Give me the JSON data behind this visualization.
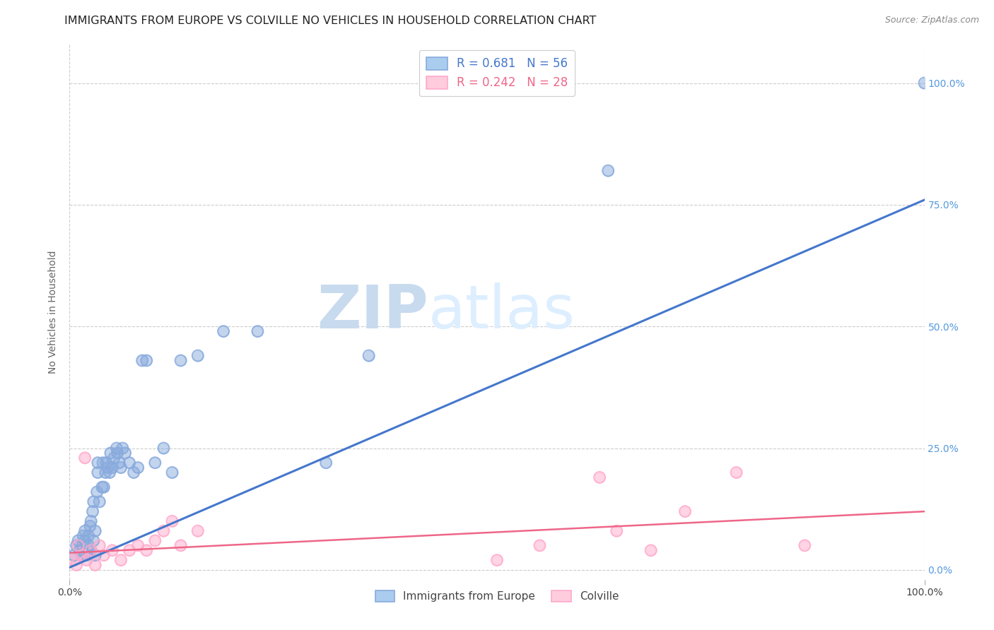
{
  "title": "IMMIGRANTS FROM EUROPE VS COLVILLE NO VEHICLES IN HOUSEHOLD CORRELATION CHART",
  "source": "Source: ZipAtlas.com",
  "ylabel": "No Vehicles in Household",
  "xlim": [
    0.0,
    1.0
  ],
  "ylim": [
    -0.02,
    1.08
  ],
  "xtick_labels": [
    "0.0%",
    "100.0%"
  ],
  "ytick_labels": [
    "0.0%",
    "25.0%",
    "50.0%",
    "75.0%",
    "100.0%"
  ],
  "ytick_positions": [
    0.0,
    0.25,
    0.5,
    0.75,
    1.0
  ],
  "xtick_positions": [
    0.0,
    1.0
  ],
  "grid_color": "#cccccc",
  "background_color": "#ffffff",
  "blue_scatter_color": "#88aadd",
  "pink_scatter_color": "#ffaacc",
  "blue_line_color": "#4477cc",
  "pink_line_color": "#ee6688",
  "right_tick_color": "#5599dd",
  "blue_R": 0.681,
  "blue_N": 56,
  "pink_R": 0.242,
  "pink_N": 28,
  "watermark_zip": "ZIP",
  "watermark_atlas": "atlas",
  "watermark_color": "#ddeeff",
  "blue_intercept": 0.005,
  "blue_slope": 0.755,
  "pink_intercept": 0.035,
  "pink_slope": 0.085,
  "blue_scatter_x": [
    0.005,
    0.008,
    0.01,
    0.012,
    0.015,
    0.015,
    0.016,
    0.018,
    0.018,
    0.02,
    0.022,
    0.022,
    0.024,
    0.025,
    0.025,
    0.027,
    0.028,
    0.028,
    0.03,
    0.03,
    0.032,
    0.033,
    0.033,
    0.035,
    0.038,
    0.039,
    0.04,
    0.042,
    0.043,
    0.045,
    0.047,
    0.048,
    0.05,
    0.052,
    0.055,
    0.056,
    0.058,
    0.06,
    0.062,
    0.065,
    0.07,
    0.075,
    0.08,
    0.085,
    0.09,
    0.1,
    0.11,
    0.12,
    0.13,
    0.15,
    0.18,
    0.22,
    0.3,
    0.35,
    0.63,
    1.0
  ],
  "blue_scatter_y": [
    0.03,
    0.05,
    0.06,
    0.04,
    0.03,
    0.05,
    0.07,
    0.06,
    0.08,
    0.03,
    0.05,
    0.07,
    0.09,
    0.04,
    0.1,
    0.12,
    0.06,
    0.14,
    0.03,
    0.08,
    0.16,
    0.2,
    0.22,
    0.14,
    0.17,
    0.22,
    0.17,
    0.2,
    0.22,
    0.21,
    0.2,
    0.24,
    0.21,
    0.23,
    0.25,
    0.24,
    0.22,
    0.21,
    0.25,
    0.24,
    0.22,
    0.2,
    0.21,
    0.43,
    0.43,
    0.22,
    0.25,
    0.2,
    0.43,
    0.44,
    0.49,
    0.49,
    0.22,
    0.44,
    0.82,
    1.0
  ],
  "pink_scatter_x": [
    0.005,
    0.008,
    0.01,
    0.015,
    0.018,
    0.02,
    0.025,
    0.03,
    0.035,
    0.04,
    0.05,
    0.06,
    0.07,
    0.08,
    0.09,
    0.1,
    0.11,
    0.12,
    0.13,
    0.15,
    0.5,
    0.55,
    0.62,
    0.64,
    0.68,
    0.72,
    0.78,
    0.86
  ],
  "pink_scatter_y": [
    0.02,
    0.01,
    0.05,
    0.03,
    0.23,
    0.02,
    0.04,
    0.01,
    0.05,
    0.03,
    0.04,
    0.02,
    0.04,
    0.05,
    0.04,
    0.06,
    0.08,
    0.1,
    0.05,
    0.08,
    0.02,
    0.05,
    0.19,
    0.08,
    0.04,
    0.12,
    0.2,
    0.05
  ],
  "legend_label_blue": "Immigrants from Europe",
  "legend_label_pink": "Colville",
  "title_fontsize": 11.5,
  "axis_tick_fontsize": 10,
  "ylabel_fontsize": 10
}
